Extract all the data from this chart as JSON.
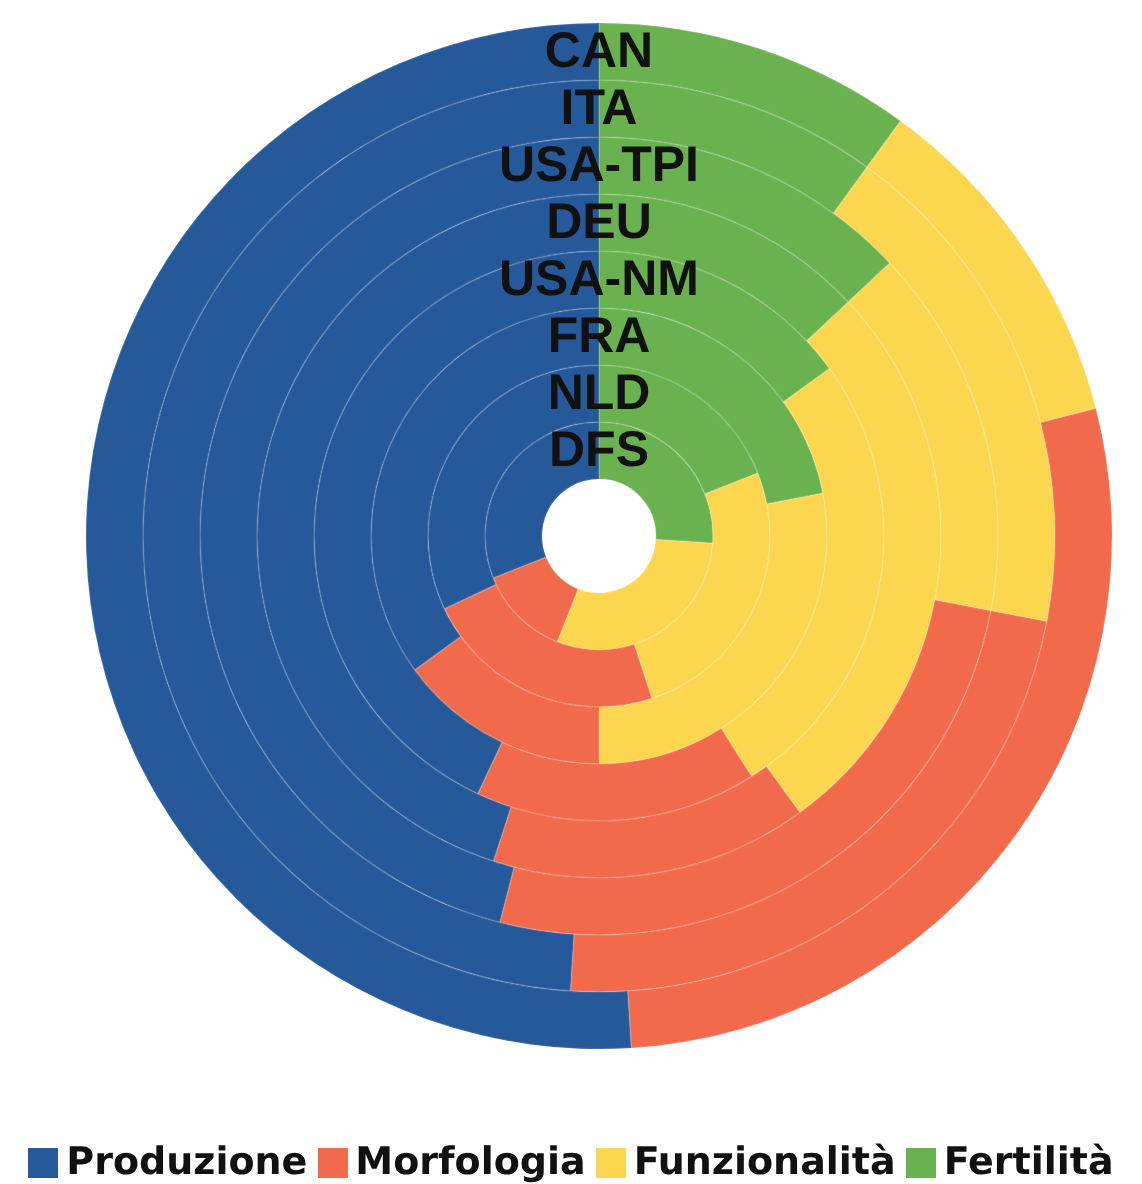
{
  "chart_data": {
    "type": "donut",
    "categories": [
      "Produzione",
      "Morfologia",
      "Funzionalità",
      "Fertilità"
    ],
    "colors": [
      "#25599a",
      "#f06a4b",
      "#fdd64f",
      "#6ab14f"
    ],
    "series": [
      {
        "name": "CAN",
        "values": [
          51,
          28,
          11,
          10
        ]
      },
      {
        "name": "ITA",
        "values": [
          49,
          23,
          18,
          10
        ]
      },
      {
        "name": "USA-TPI",
        "values": [
          46,
          26,
          15,
          13
        ]
      },
      {
        "name": "DEU",
        "values": [
          45,
          15,
          27,
          13
        ]
      },
      {
        "name": "USA-NM",
        "values": [
          43,
          16,
          26,
          15
        ]
      },
      {
        "name": "FRA",
        "values": [
          35,
          15,
          28,
          22
        ]
      },
      {
        "name": "NLD",
        "values": [
          32,
          23,
          26,
          19
        ]
      },
      {
        "name": "DFS",
        "values": [
          31,
          13,
          30,
          26
        ]
      }
    ],
    "legend": "bottom"
  }
}
